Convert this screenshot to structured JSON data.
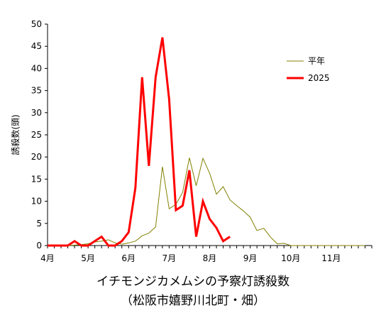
{
  "chart_data": {
    "type": "line",
    "title": "イチモンジカメムシの予察灯誘殺数",
    "subtitle": "（松阪市嬉野川北町・畑）",
    "ylabel": "誘殺数(頭)",
    "xlabel": "",
    "ylim": [
      0,
      50
    ],
    "yticks": [
      0,
      5,
      10,
      15,
      20,
      25,
      30,
      35,
      40,
      45,
      50
    ],
    "xlim": [
      0,
      48
    ],
    "month_labels": [
      "4月",
      "5月",
      "6月",
      "7月",
      "8月",
      "9月",
      "10月",
      "11月"
    ],
    "legend_position": "top-right",
    "grid": false,
    "series": [
      {
        "name": "平年",
        "color": "#808000",
        "width": 1,
        "x": [
          0,
          1,
          2,
          3,
          4,
          5,
          6,
          7,
          8,
          9,
          10,
          11,
          12,
          13,
          14,
          15,
          16,
          17,
          18,
          19,
          20,
          21,
          22,
          23,
          24,
          25,
          26,
          27,
          28,
          29,
          30,
          31,
          32,
          33,
          34,
          35,
          36,
          37,
          38,
          39,
          40,
          41,
          42,
          43,
          44,
          45,
          46,
          47
        ],
        "values": [
          0,
          0,
          0,
          0,
          0.1,
          0.2,
          0.4,
          0.8,
          1.0,
          1.3,
          0.6,
          0.3,
          0.6,
          1.0,
          2.2,
          2.8,
          4.2,
          17.8,
          8.3,
          9.3,
          12.0,
          19.8,
          13.5,
          19.7,
          16.3,
          11.6,
          13.3,
          10.3,
          9.0,
          7.8,
          6.4,
          3.4,
          3.9,
          1.9,
          0.4,
          0.5,
          0,
          0,
          0,
          0,
          0,
          0,
          0,
          0,
          0,
          0,
          0,
          0
        ]
      },
      {
        "name": "2025",
        "color": "#ff0000",
        "width": 3,
        "x": [
          0,
          1,
          2,
          3,
          4,
          5,
          6,
          7,
          8,
          9,
          10,
          11,
          12,
          13,
          14,
          15,
          16,
          17,
          18,
          19,
          20,
          21,
          22,
          23,
          24,
          25,
          26,
          27
        ],
        "values": [
          0,
          0,
          0,
          0,
          1,
          0,
          0,
          1,
          2,
          0,
          0,
          1,
          3,
          13,
          38,
          18,
          38,
          47,
          33,
          8,
          9,
          17,
          2,
          10,
          6,
          4,
          1,
          2
        ]
      }
    ]
  }
}
